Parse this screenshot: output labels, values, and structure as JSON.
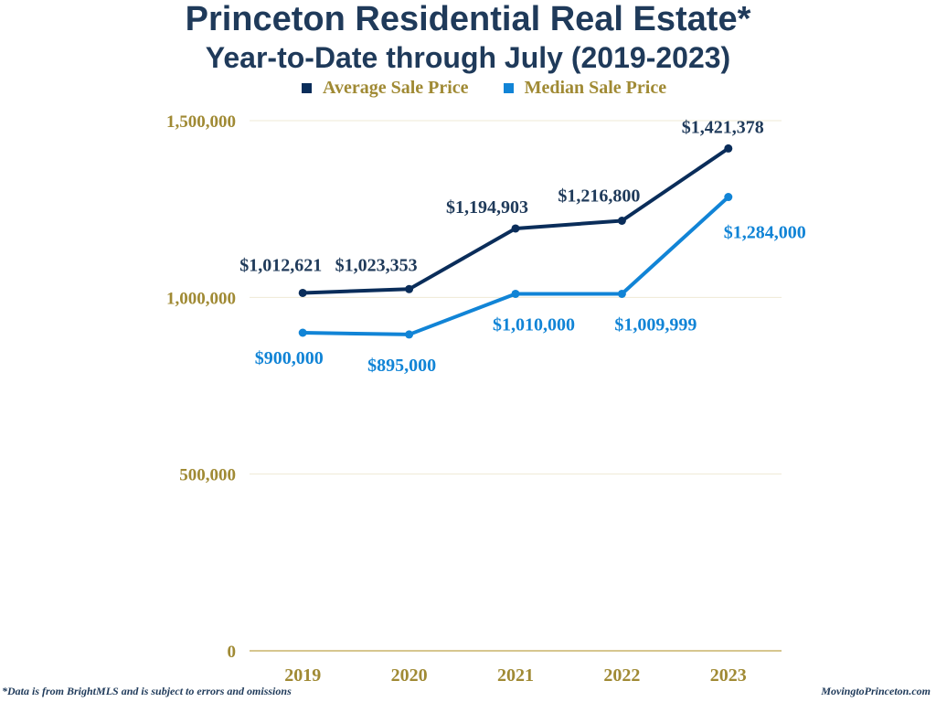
{
  "chart_data": {
    "type": "line",
    "title": "Princeton Residential Real Estate*",
    "subtitle": "Year-to-Date through July (2019-2023)",
    "categories": [
      "2019",
      "2020",
      "2021",
      "2022",
      "2023"
    ],
    "series": [
      {
        "name": "Average Sale Price",
        "color": "#0a2d5a",
        "values": [
          1012621,
          1023353,
          1194903,
          1216800,
          1421378
        ],
        "labels": [
          "$1,012,621",
          "$1,023,353",
          "$1,194,903",
          "$1,216,800",
          "$1,421,378"
        ]
      },
      {
        "name": "Median Sale Price",
        "color": "#1184d6",
        "values": [
          900000,
          895000,
          1010000,
          1009999,
          1284000
        ],
        "labels": [
          "$900,000",
          "$895,000",
          "$1,010,000",
          "$1,009,999",
          "$1,284,000"
        ]
      }
    ],
    "yticks": [
      "0",
      "500,000",
      "1,000,000",
      "1,500,000"
    ],
    "ytick_values": [
      0,
      500000,
      1000000,
      1500000
    ],
    "ylim": [
      0,
      1500000
    ],
    "grid": true,
    "legend_position": "top-center",
    "xlabel": "",
    "ylabel": ""
  },
  "footer": {
    "note": "*Data is from BrightMLS and is subject to errors and omissions",
    "source": "MovingtoPrinceton.com"
  },
  "colors": {
    "axis_text": "#a08a34",
    "title": "#1f3a5a",
    "grid": "#efe9d4"
  }
}
